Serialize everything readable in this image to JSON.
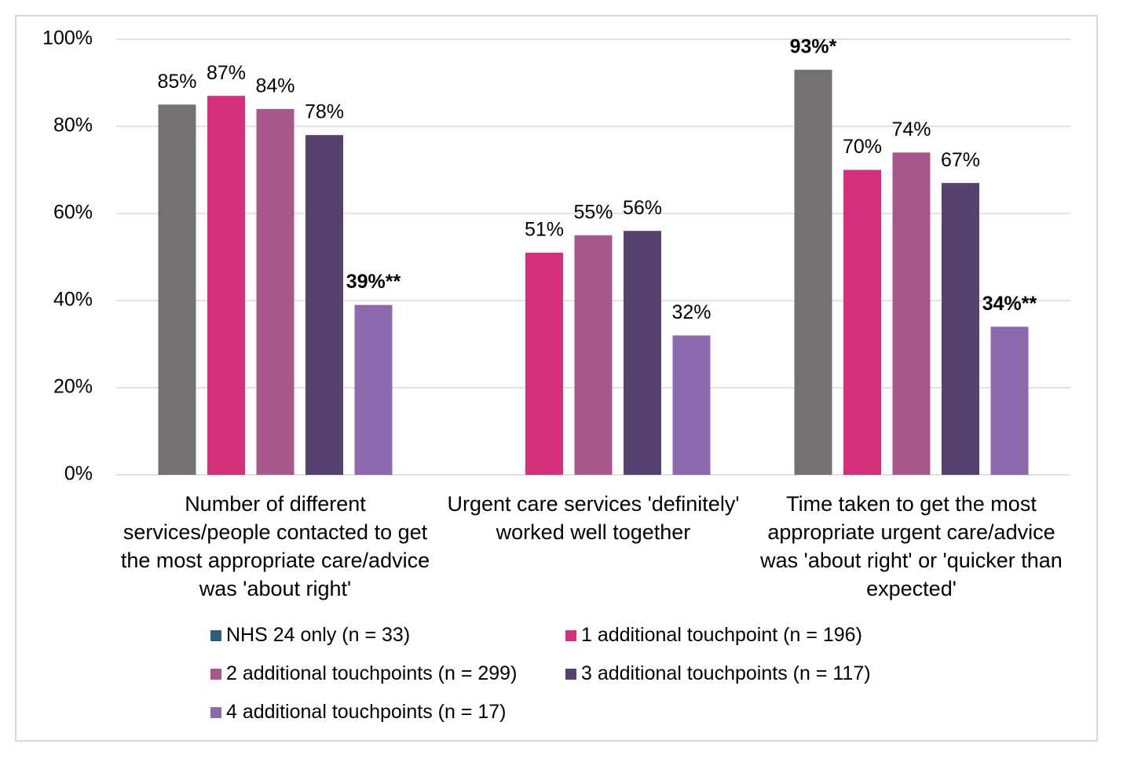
{
  "chart_data": {
    "type": "bar",
    "categories": [
      "Number of different services/people contacted to get the most appropriate care/advice was 'about right'",
      "Urgent care services 'definitely' worked well together",
      "Time taken to get the most appropriate urgent care/advice was 'about right' or 'quicker than expected'"
    ],
    "series": [
      {
        "name": "NHS 24 only (n = 33)",
        "color": "#767171",
        "legend_color": "#2e5f7f",
        "values": [
          85,
          null,
          93
        ],
        "value_labels": [
          "85%",
          null,
          "93%*"
        ],
        "value_label_colors": [
          "#000000",
          null,
          "#2d6a2f"
        ]
      },
      {
        "name": "1 additional touchpoint (n = 196)",
        "color": "#d62f7c",
        "values": [
          87,
          51,
          70
        ],
        "value_labels": [
          "87%",
          "51%",
          "70%"
        ],
        "value_label_colors": [
          "#000000",
          "#000000",
          "#000000"
        ]
      },
      {
        "name": "2 additional touchpoints (n = 299)",
        "color": "#a8578a",
        "values": [
          84,
          55,
          74
        ],
        "value_labels": [
          "84%",
          "55%",
          "74%"
        ],
        "value_label_colors": [
          "#000000",
          "#000000",
          "#000000"
        ]
      },
      {
        "name": "3 additional touchpoints (n = 117)",
        "color": "#56426e",
        "values": [
          78,
          56,
          67
        ],
        "value_labels": [
          "78%",
          "56%",
          "67%"
        ],
        "value_label_colors": [
          "#000000",
          "#000000",
          "#000000"
        ]
      },
      {
        "name": "4 additional touchpoints (n = 17)",
        "color": "#8c6aad",
        "values": [
          39,
          32,
          34
        ],
        "value_labels": [
          "39%**",
          "32%",
          "34%**"
        ],
        "value_label_colors": [
          "#c0282d",
          "#000000",
          "#c0282d"
        ]
      }
    ],
    "ylim": [
      0,
      100
    ],
    "yticks": [
      {
        "value": 0,
        "label": "0%"
      },
      {
        "value": 20,
        "label": "20%"
      },
      {
        "value": 40,
        "label": "40%"
      },
      {
        "value": 60,
        "label": "60%"
      },
      {
        "value": 80,
        "label": "80%"
      },
      {
        "value": 100,
        "label": "100%"
      }
    ],
    "grid": true,
    "legend": "bottom"
  }
}
